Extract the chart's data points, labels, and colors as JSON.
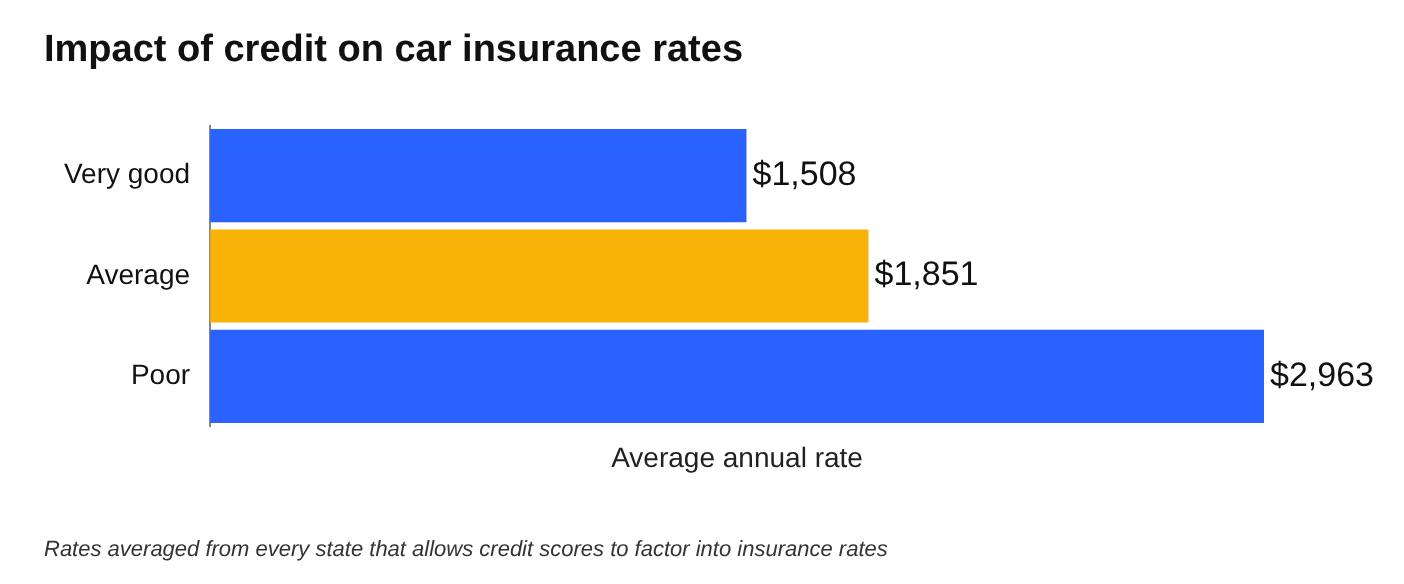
{
  "chart_data": {
    "type": "bar",
    "orientation": "horizontal",
    "title": "Impact of credit on car insurance rates",
    "xlabel": "Average annual rate",
    "categories": [
      "Very good",
      "Average",
      "Poor"
    ],
    "values": [
      1508,
      1851,
      2963
    ],
    "colors": [
      "#2962ff",
      "#f9b208",
      "#2962ff"
    ],
    "value_labels": [
      "$1,508",
      "$1,851",
      "$2,963"
    ],
    "tick_labels": "y",
    "grid": false,
    "legend": false,
    "annotations": [
      "Rates averaged from every state that allows credit scores to factor into insurance rates"
    ]
  }
}
